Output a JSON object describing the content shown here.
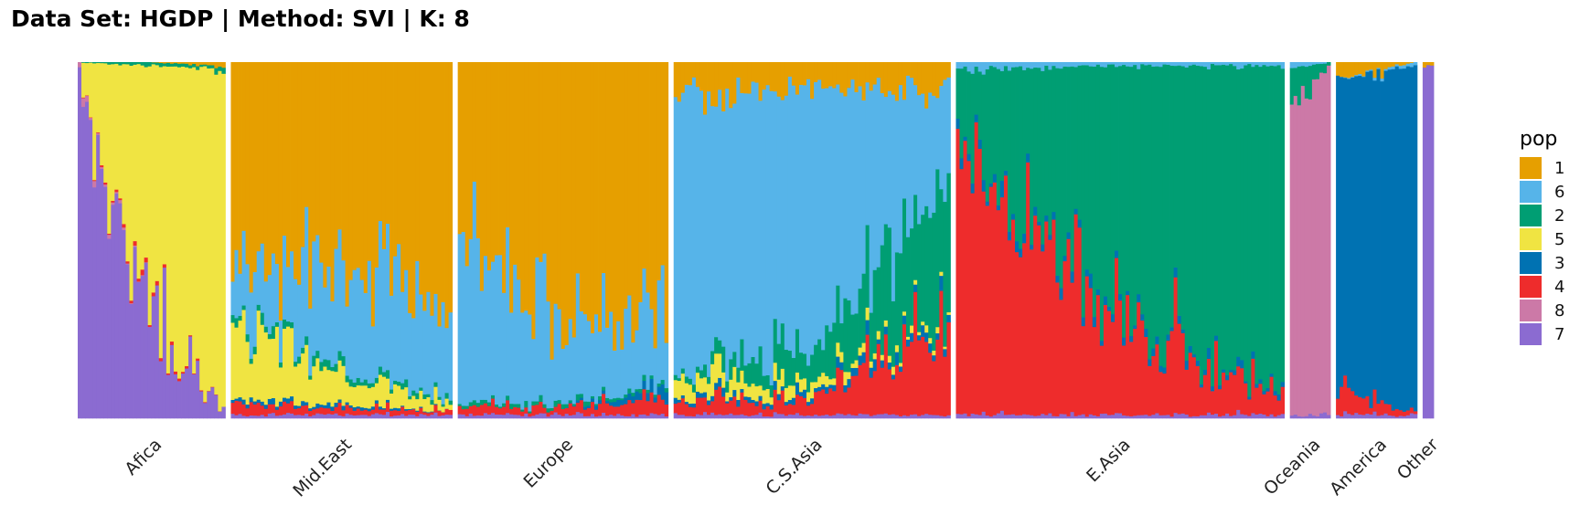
{
  "chart_data": {
    "type": "bar",
    "stacked": true,
    "title": "Data Set: HGDP | Method: SVI | K: 8",
    "ylim": [
      0,
      1
    ],
    "grid": false,
    "legend_position": "right",
    "legend": {
      "title": "pop",
      "entries": [
        {
          "label": "1",
          "color": "#E69F00"
        },
        {
          "label": "6",
          "color": "#56B4E9"
        },
        {
          "label": "2",
          "color": "#009E73"
        },
        {
          "label": "5",
          "color": "#F0E442"
        },
        {
          "label": "3",
          "color": "#0072B2"
        },
        {
          "label": "4",
          "color": "#EE2C2C"
        },
        {
          "label": "8",
          "color": "#CC79A7"
        },
        {
          "label": "7",
          "color": "#8B6BD1"
        }
      ]
    },
    "components": [
      "7",
      "8",
      "4",
      "3",
      "5",
      "2",
      "6",
      "1"
    ],
    "groups": [
      {
        "label": "Afica",
        "n": 40,
        "profile": [
          [
            0.6,
            0.01,
            0.0,
            0.0,
            0.0,
            0.0,
            0.0,
            0.0
          ],
          [
            0.3,
            0.0,
            0.01,
            0.0,
            0.68,
            0.01,
            0.0,
            0.0
          ],
          [
            0.02,
            0.0,
            0.0,
            0.0,
            0.96,
            0.01,
            0.0,
            0.01
          ]
        ]
      },
      {
        "label": "Mid.East",
        "n": 60,
        "profile": [
          [
            0.01,
            0.0,
            0.03,
            0.01,
            0.2,
            0.02,
            0.15,
            0.58
          ],
          [
            0.01,
            0.0,
            0.02,
            0.01,
            0.08,
            0.02,
            0.3,
            0.56
          ],
          [
            0.01,
            0.0,
            0.01,
            0.0,
            0.02,
            0.01,
            0.25,
            0.7
          ]
        ]
      },
      {
        "label": "Europe",
        "n": 57,
        "profile": [
          [
            0.01,
            0.0,
            0.02,
            0.0,
            0.0,
            0.01,
            0.5,
            0.46
          ],
          [
            0.01,
            0.0,
            0.02,
            0.0,
            0.0,
            0.01,
            0.2,
            0.76
          ],
          [
            0.01,
            0.0,
            0.05,
            0.03,
            0.0,
            0.01,
            0.25,
            0.65
          ]
        ]
      },
      {
        "label": "C.S.Asia",
        "n": 75,
        "profile": [
          [
            0.01,
            0.0,
            0.03,
            0.01,
            0.05,
            0.01,
            0.8,
            0.09
          ],
          [
            0.01,
            0.0,
            0.05,
            0.02,
            0.03,
            0.1,
            0.72,
            0.07
          ],
          [
            0.01,
            0.0,
            0.25,
            0.03,
            0.01,
            0.35,
            0.27,
            0.08
          ]
        ]
      },
      {
        "label": "E.Asia",
        "n": 89,
        "profile": [
          [
            0.01,
            0.0,
            0.75,
            0.02,
            0.0,
            0.2,
            0.02,
            0.0
          ],
          [
            0.01,
            0.0,
            0.28,
            0.02,
            0.0,
            0.68,
            0.01,
            0.0
          ],
          [
            0.01,
            0.0,
            0.04,
            0.01,
            0.0,
            0.93,
            0.01,
            0.0
          ]
        ]
      },
      {
        "label": "Oceania",
        "n": 11,
        "profile": [
          [
            0.01,
            0.85,
            0.0,
            0.0,
            0.0,
            0.12,
            0.02,
            0.0
          ],
          [
            0.01,
            0.98,
            0.0,
            0.0,
            0.0,
            0.01,
            0.0,
            0.0
          ]
        ]
      },
      {
        "label": "America",
        "n": 22,
        "profile": [
          [
            0.01,
            0.0,
            0.06,
            0.88,
            0.0,
            0.0,
            0.0,
            0.05
          ],
          [
            0.01,
            0.0,
            0.01,
            0.97,
            0.0,
            0.0,
            0.01,
            0.0
          ]
        ]
      },
      {
        "label": "Other",
        "n": 3,
        "profile": [
          [
            0.99,
            0.0,
            0.0,
            0.0,
            0.0,
            0.0,
            0.0,
            0.01
          ]
        ]
      }
    ]
  }
}
